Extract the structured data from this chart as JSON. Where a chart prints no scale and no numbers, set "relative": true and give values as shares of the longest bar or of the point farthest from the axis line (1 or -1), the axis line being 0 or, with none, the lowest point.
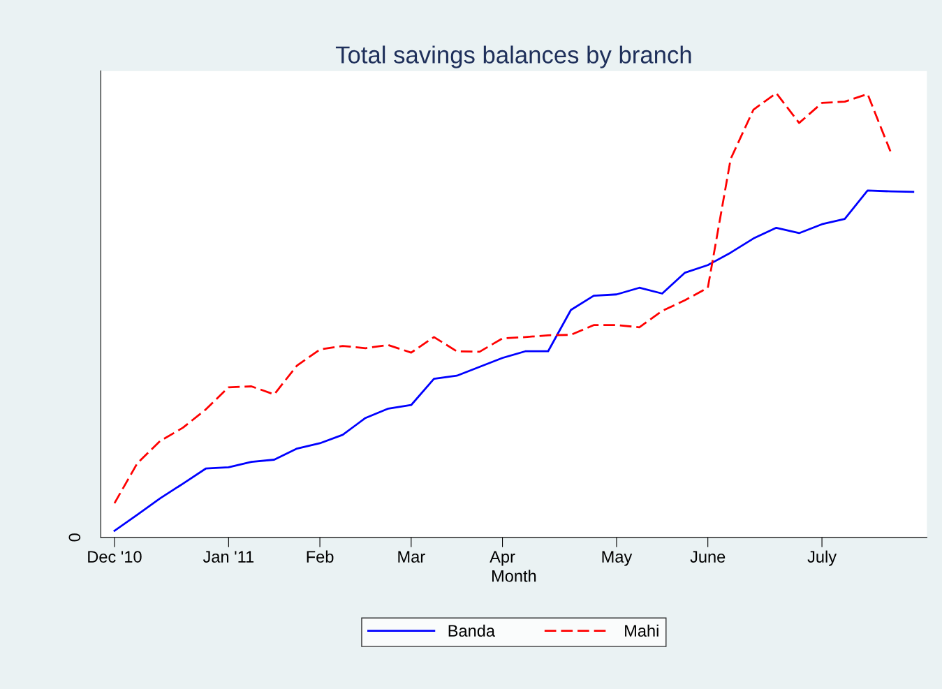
{
  "chart_data": {
    "type": "line",
    "title": "Total savings balances by branch",
    "xlabel": "Month",
    "relative": true,
    "categories": [
      "Dec '10",
      null,
      null,
      null,
      null,
      "Jan '11",
      null,
      null,
      null,
      "Feb",
      null,
      null,
      null,
      "Mar",
      null,
      null,
      null,
      "Apr",
      null,
      null,
      null,
      null,
      "May",
      null,
      null,
      null,
      "June",
      null,
      null,
      null,
      null,
      "July",
      null,
      null,
      null,
      null
    ],
    "series": [
      {
        "name": "Banda",
        "color": "#0000ff",
        "line_style": "solid",
        "values": [
          0.015,
          0.051,
          0.088,
          0.121,
          0.155,
          0.158,
          0.17,
          0.175,
          0.2,
          0.212,
          0.231,
          0.269,
          0.29,
          0.298,
          0.357,
          0.364,
          0.384,
          0.404,
          0.419,
          0.419,
          0.512,
          0.544,
          0.547,
          0.562,
          0.549,
          0.596,
          0.613,
          0.641,
          0.673,
          0.697,
          0.685,
          0.705,
          0.717,
          0.781,
          0.779,
          0.778
        ]
      },
      {
        "name": "Mahi",
        "color": "#ff0000",
        "line_style": "dashed",
        "values": [
          0.077,
          0.167,
          0.217,
          0.247,
          0.288,
          0.338,
          0.34,
          0.322,
          0.387,
          0.423,
          0.431,
          0.426,
          0.433,
          0.416,
          0.451,
          0.419,
          0.418,
          0.448,
          0.451,
          0.455,
          0.456,
          0.478,
          0.478,
          0.473,
          0.51,
          0.534,
          0.562,
          0.852,
          0.963,
          1.0,
          0.933,
          0.978,
          0.981,
          0.998,
          0.869,
          null
        ]
      }
    ],
    "annotations": [
      "0"
    ],
    "legend": "bottom",
    "grid": false
  }
}
